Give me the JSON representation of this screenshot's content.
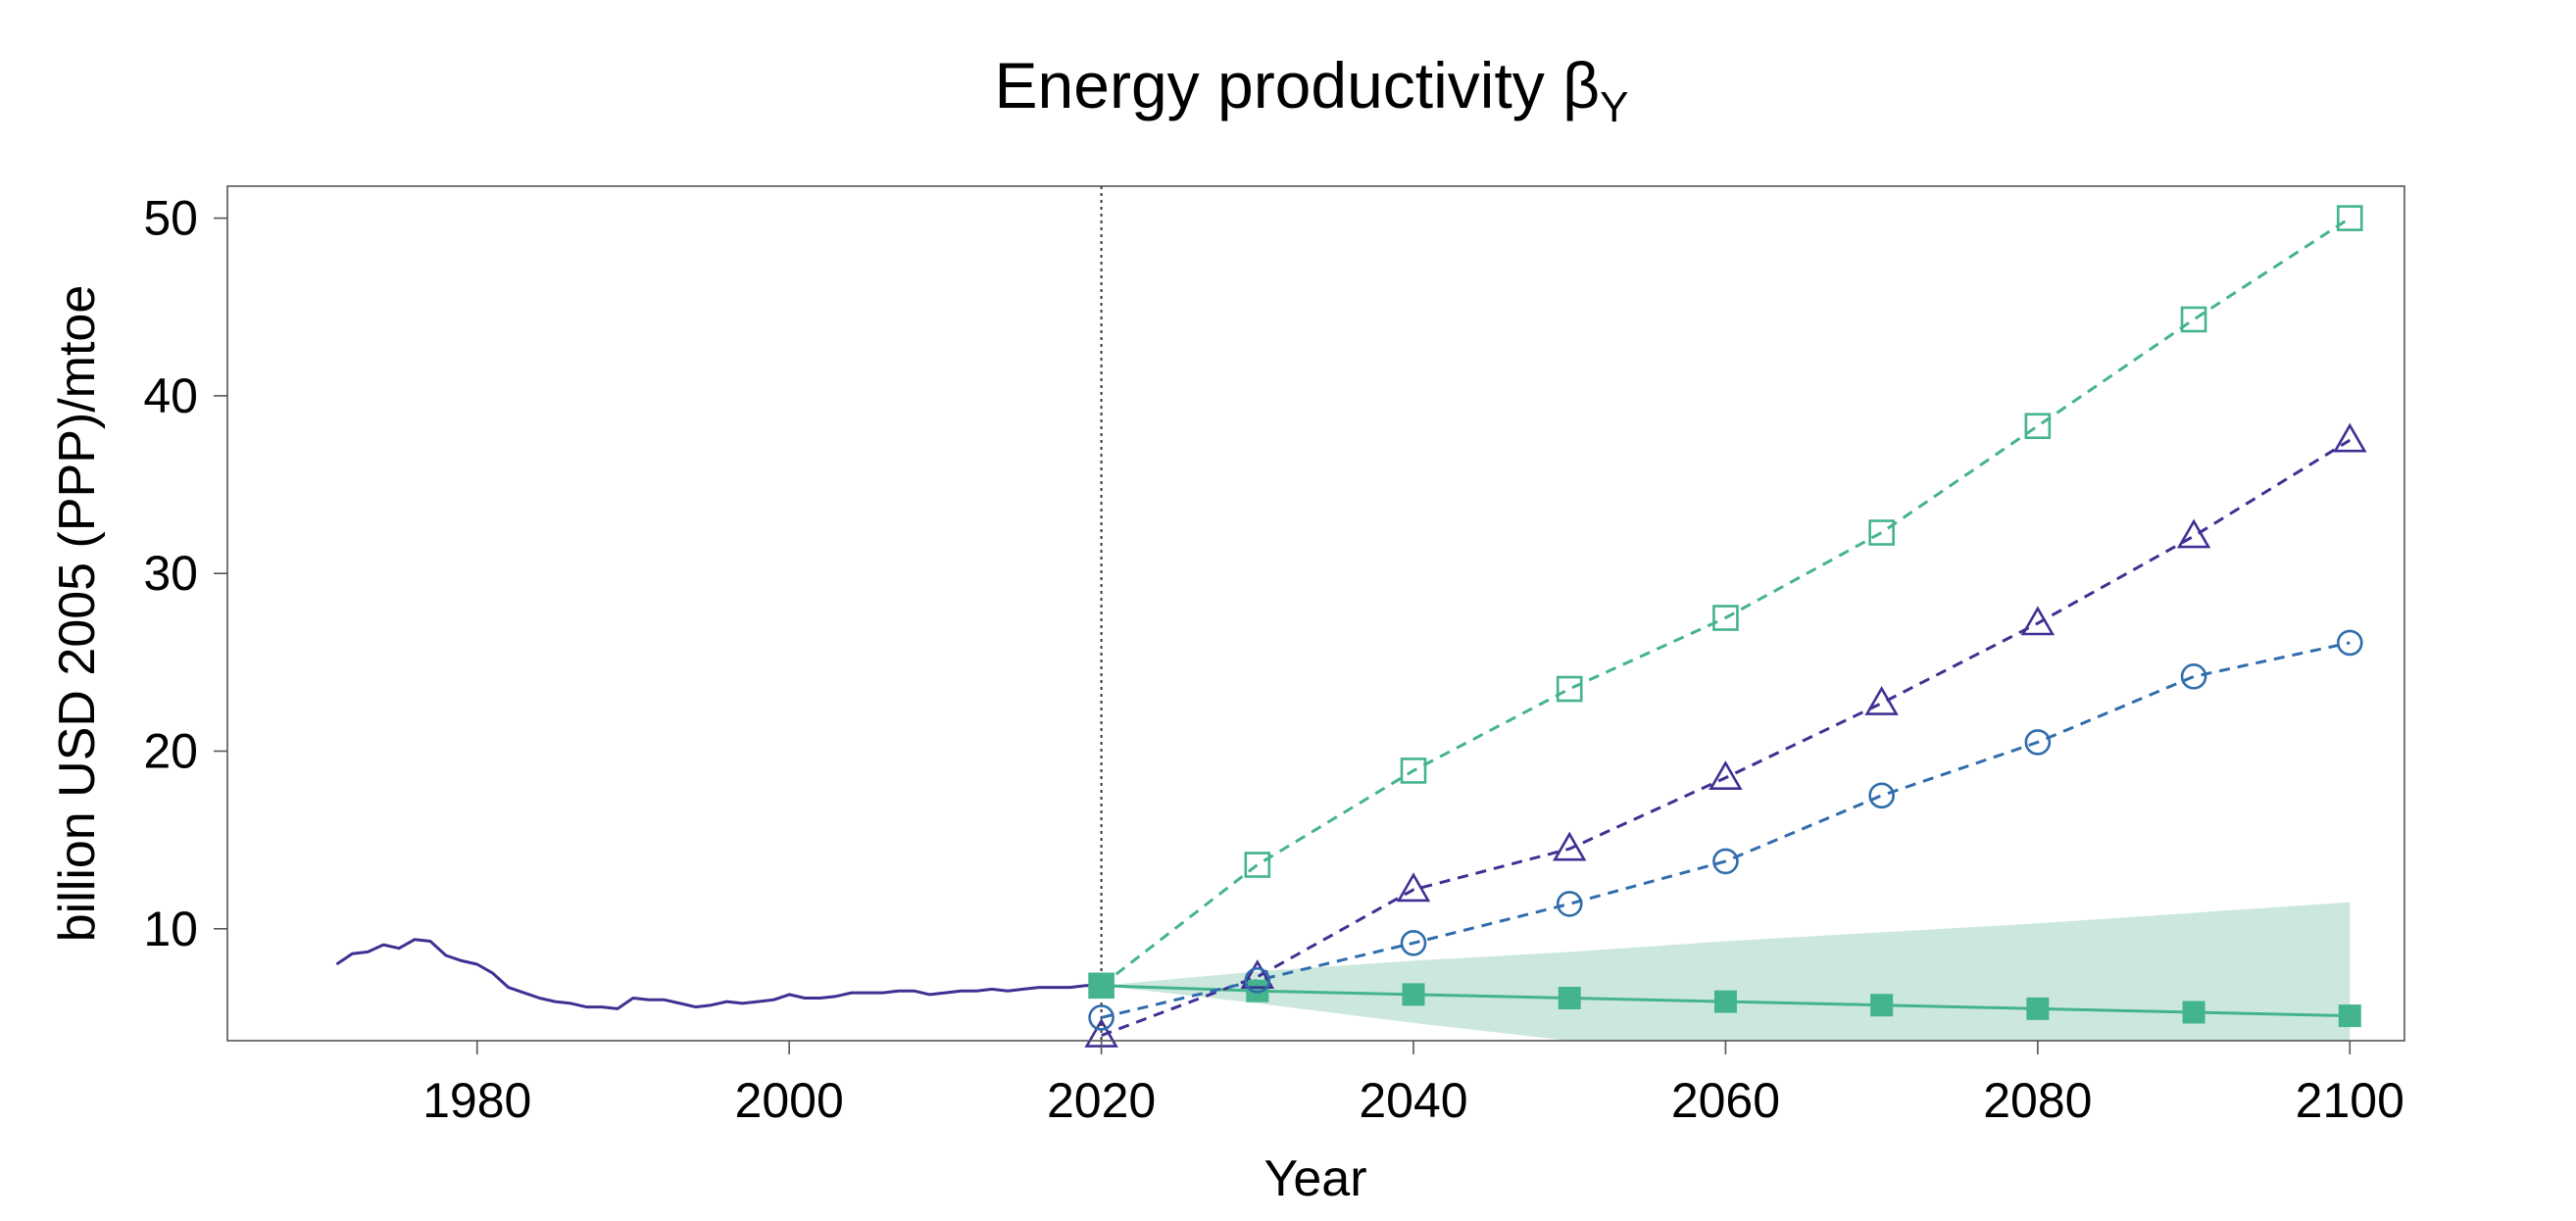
{
  "chart_data": {
    "type": "line",
    "title": "Energy productivity β",
    "title_subscript": "Y",
    "xlabel": "Year",
    "ylabel": "billion USD 2005 (PPP)/mtoe",
    "xlim": [
      1964,
      2103.5
    ],
    "ylim": [
      3.7,
      51.8
    ],
    "xticks": [
      1980,
      2000,
      2020,
      2040,
      2060,
      2080,
      2100
    ],
    "yticks": [
      10,
      20,
      30,
      40,
      50
    ],
    "grid": false,
    "vline_x": 2020,
    "colors": {
      "historical": "#3f3193",
      "band": "#cce8dd",
      "green": "#44b48c",
      "purple": "#3f3193",
      "blue": "#2f6dac"
    },
    "historical": {
      "name": "historical",
      "x": [
        1971,
        1972,
        1973,
        1974,
        1975,
        1976,
        1977,
        1978,
        1979,
        1980,
        1981,
        1982,
        1983,
        1984,
        1985,
        1986,
        1987,
        1988,
        1989,
        1990,
        1991,
        1992,
        1993,
        1994,
        1995,
        1996,
        1997,
        1998,
        1999,
        2000,
        2001,
        2002,
        2003,
        2004,
        2005,
        2006,
        2007,
        2008,
        2009,
        2010,
        2011,
        2012,
        2013,
        2014,
        2015,
        2016,
        2017,
        2018,
        2019,
        2020
      ],
      "y": [
        8.0,
        8.6,
        8.7,
        9.1,
        8.9,
        9.4,
        9.3,
        8.5,
        8.2,
        8.0,
        7.5,
        6.7,
        6.4,
        6.1,
        5.9,
        5.8,
        5.6,
        5.6,
        5.5,
        6.1,
        6.0,
        6.0,
        5.8,
        5.6,
        5.7,
        5.9,
        5.8,
        5.9,
        6.0,
        6.3,
        6.1,
        6.1,
        6.2,
        6.4,
        6.4,
        6.4,
        6.5,
        6.5,
        6.3,
        6.4,
        6.5,
        6.5,
        6.6,
        6.5,
        6.6,
        6.7,
        6.7,
        6.7,
        6.8,
        6.8
      ]
    },
    "band": {
      "name": "uncertainty range",
      "x": [
        2020,
        2030,
        2040,
        2050,
        2060,
        2070,
        2080,
        2090,
        2100
      ],
      "upper": [
        6.8,
        7.6,
        8.2,
        8.7,
        9.3,
        9.8,
        10.3,
        10.9,
        11.5
      ],
      "lower": [
        6.8,
        5.8,
        4.7,
        3.7,
        3.7,
        3.7,
        3.7,
        3.7,
        3.7
      ]
    },
    "series": [
      {
        "name": "filled squares",
        "marker": "square-filled",
        "line": "solid",
        "color": "#44b48c",
        "x": [
          2020,
          2030,
          2040,
          2050,
          2060,
          2070,
          2080,
          2090,
          2100
        ],
        "y": [
          6.8,
          6.5,
          6.3,
          6.1,
          5.9,
          5.7,
          5.5,
          5.3,
          5.1
        ]
      },
      {
        "name": "open squares",
        "marker": "square-open",
        "line": "dashed",
        "color": "#44b48c",
        "x": [
          2020,
          2030,
          2040,
          2050,
          2060,
          2070,
          2080,
          2090,
          2100
        ],
        "y": [
          6.8,
          13.6,
          18.9,
          23.5,
          27.5,
          32.3,
          38.3,
          44.3,
          50.0
        ]
      },
      {
        "name": "open triangles",
        "marker": "triangle-open",
        "line": "dashed",
        "color": "#3f3193",
        "x": [
          2020,
          2030,
          2040,
          2050,
          2060,
          2070,
          2080,
          2090,
          2100
        ],
        "y": [
          4.0,
          7.3,
          12.2,
          14.5,
          18.5,
          22.7,
          27.2,
          32.1,
          37.5
        ]
      },
      {
        "name": "open circles",
        "marker": "circle-open",
        "line": "dashed",
        "color": "#2f6dac",
        "x": [
          2020,
          2030,
          2040,
          2050,
          2060,
          2070,
          2080,
          2090,
          2100
        ],
        "y": [
          5.0,
          7.1,
          9.2,
          11.4,
          13.8,
          17.5,
          20.5,
          24.2,
          26.1
        ]
      }
    ]
  }
}
